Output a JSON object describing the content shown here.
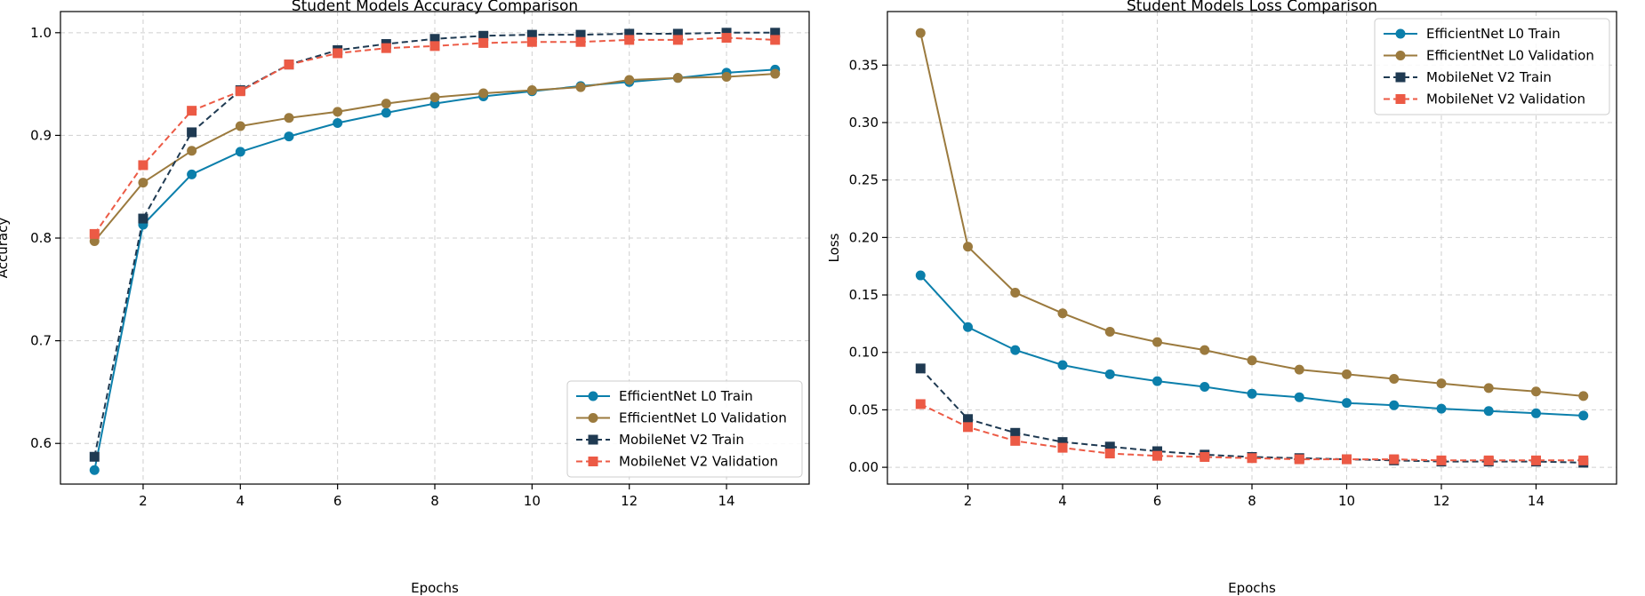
{
  "chart_data": [
    {
      "type": "line",
      "title": "Student Models Accuracy Comparison",
      "xlabel": "Epochs",
      "ylabel": "Accuracy",
      "xlim": [
        0.3,
        15.7
      ],
      "ylim": [
        0.5604,
        1.0206
      ],
      "xticks": [
        2,
        4,
        6,
        8,
        10,
        12,
        14
      ],
      "yticks": [
        0.6,
        0.7,
        0.8,
        0.9,
        1.0
      ],
      "ytick_labels": [
        "0.6",
        "0.7",
        "0.8",
        "0.9",
        "1.0"
      ],
      "grid": true,
      "legend_position": "lower-right",
      "x": [
        1,
        2,
        3,
        4,
        5,
        6,
        7,
        8,
        9,
        10,
        11,
        12,
        13,
        14,
        15
      ],
      "series": [
        {
          "name": "EfficientNet L0 Train",
          "color": "#0b7fab",
          "marker": "circle",
          "dashed": false,
          "values": [
            0.574,
            0.813,
            0.862,
            0.884,
            0.899,
            0.912,
            0.922,
            0.931,
            0.938,
            0.943,
            0.948,
            0.952,
            0.956,
            0.961,
            0.964
          ]
        },
        {
          "name": "EfficientNet L0 Validation",
          "color": "#9b7a3e",
          "marker": "circle",
          "dashed": false,
          "values": [
            0.797,
            0.854,
            0.885,
            0.909,
            0.917,
            0.923,
            0.931,
            0.937,
            0.941,
            0.944,
            0.947,
            0.954,
            0.956,
            0.957,
            0.96
          ]
        },
        {
          "name": "MobileNet V2 Train",
          "color": "#1f3a52",
          "marker": "square",
          "dashed": true,
          "values": [
            0.587,
            0.819,
            0.903,
            0.944,
            0.969,
            0.983,
            0.989,
            0.994,
            0.997,
            0.998,
            0.998,
            0.999,
            0.999,
            1.0,
            1.0
          ]
        },
        {
          "name": "MobileNet V2 Validation",
          "color": "#ec5a45",
          "marker": "square",
          "dashed": true,
          "values": [
            0.804,
            0.871,
            0.924,
            0.943,
            0.969,
            0.98,
            0.985,
            0.987,
            0.99,
            0.991,
            0.991,
            0.993,
            0.993,
            0.995,
            0.993
          ]
        }
      ]
    },
    {
      "type": "line",
      "title": "Student Models Loss Comparison",
      "xlabel": "Epochs",
      "ylabel": "Loss",
      "xlim": [
        0.3,
        15.7
      ],
      "ylim": [
        -0.0146,
        0.3966
      ],
      "xticks": [
        2,
        4,
        6,
        8,
        10,
        12,
        14
      ],
      "yticks": [
        0.0,
        0.05,
        0.1,
        0.15,
        0.2,
        0.25,
        0.3,
        0.35
      ],
      "ytick_labels": [
        "0.00",
        "0.05",
        "0.10",
        "0.15",
        "0.20",
        "0.25",
        "0.30",
        "0.35"
      ],
      "grid": true,
      "legend_position": "top-right",
      "x": [
        1,
        2,
        3,
        4,
        5,
        6,
        7,
        8,
        9,
        10,
        11,
        12,
        13,
        14,
        15
      ],
      "series": [
        {
          "name": "EfficientNet L0 Train",
          "color": "#0b7fab",
          "marker": "circle",
          "dashed": false,
          "values": [
            0.167,
            0.122,
            0.102,
            0.089,
            0.081,
            0.075,
            0.07,
            0.064,
            0.061,
            0.056,
            0.054,
            0.051,
            0.049,
            0.047,
            0.045
          ]
        },
        {
          "name": "EfficientNet L0 Validation",
          "color": "#9b7a3e",
          "marker": "circle",
          "dashed": false,
          "values": [
            0.378,
            0.192,
            0.152,
            0.134,
            0.118,
            0.109,
            0.102,
            0.093,
            0.085,
            0.081,
            0.077,
            0.073,
            0.069,
            0.066,
            0.062
          ]
        },
        {
          "name": "MobileNet V2 Train",
          "color": "#1f3a52",
          "marker": "square",
          "dashed": true,
          "values": [
            0.086,
            0.042,
            0.03,
            0.022,
            0.018,
            0.014,
            0.011,
            0.009,
            0.008,
            0.007,
            0.006,
            0.005,
            0.005,
            0.005,
            0.004
          ]
        },
        {
          "name": "MobileNet V2 Validation",
          "color": "#ec5a45",
          "marker": "square",
          "dashed": true,
          "values": [
            0.055,
            0.035,
            0.023,
            0.017,
            0.012,
            0.01,
            0.009,
            0.008,
            0.007,
            0.007,
            0.007,
            0.006,
            0.006,
            0.006,
            0.006
          ]
        }
      ]
    }
  ]
}
